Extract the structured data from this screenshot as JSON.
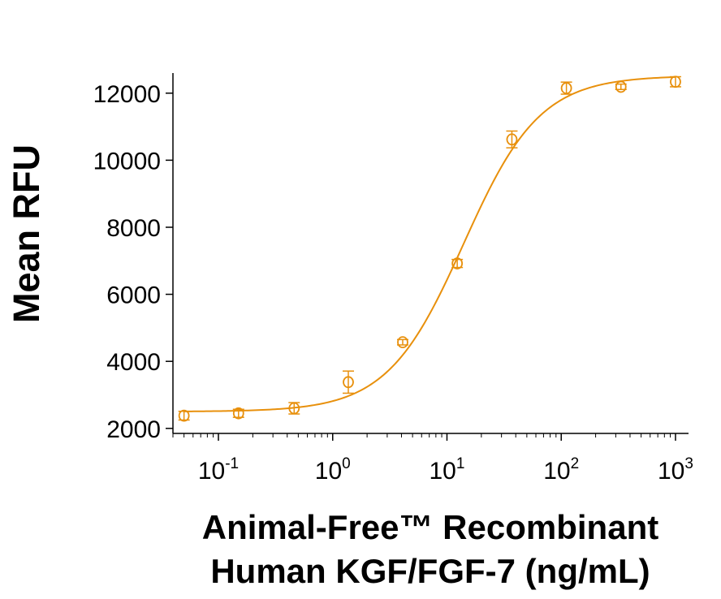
{
  "chart_data": {
    "type": "scatter",
    "xscale": "log",
    "xlim": [
      0.04,
      1300
    ],
    "ylim": [
      1850,
      12600
    ],
    "xlabel_lines": [
      "Animal-Free™ Recombinant",
      "Human KGF/FGF-7 (ng/mL)"
    ],
    "ylabel": "Mean RFU",
    "x_ticks": [
      {
        "value": 0.1,
        "base": "10",
        "exp": "-1"
      },
      {
        "value": 1,
        "base": "10",
        "exp": "0"
      },
      {
        "value": 10,
        "base": "10",
        "exp": "1"
      },
      {
        "value": 100,
        "base": "10",
        "exp": "2"
      },
      {
        "value": 1000,
        "base": "10",
        "exp": "3"
      }
    ],
    "y_ticks": [
      2000,
      4000,
      6000,
      8000,
      10000,
      12000
    ],
    "color": "#e8900c",
    "series": [
      {
        "points": [
          {
            "x": 0.05,
            "y": 2380,
            "err": 130
          },
          {
            "x": 0.15,
            "y": 2450,
            "err": 120
          },
          {
            "x": 0.46,
            "y": 2600,
            "err": 170
          },
          {
            "x": 1.37,
            "y": 3380,
            "err": 330
          },
          {
            "x": 4.1,
            "y": 4570,
            "err": 80
          },
          {
            "x": 12.3,
            "y": 6920,
            "err": 120
          },
          {
            "x": 37,
            "y": 10620,
            "err": 250
          },
          {
            "x": 111,
            "y": 12150,
            "err": 180
          },
          {
            "x": 333,
            "y": 12190,
            "err": 80
          },
          {
            "x": 1000,
            "y": 12340,
            "err": 150
          }
        ],
        "fit": {
          "bottom": 2500,
          "top": 12520,
          "ec50": 14,
          "hill": 1.3
        }
      }
    ]
  }
}
